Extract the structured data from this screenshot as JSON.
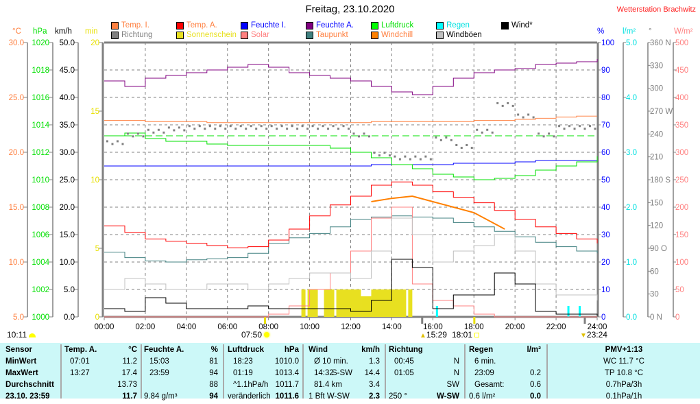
{
  "header": {
    "title": "Freitag, 23.10.2020",
    "station": "Wetterstation Brachwitz"
  },
  "legend": [
    {
      "label": "Temp. I.",
      "color": "#ff8040",
      "text_color": "#ff8040"
    },
    {
      "label": "Richtung",
      "color": "#808080",
      "text_color": "#808080"
    },
    {
      "label": "Temp. A.",
      "color": "#ff0000",
      "text_color": "#ff8040"
    },
    {
      "label": "Sonnenschein",
      "color": "#e8e020",
      "text_color": "#e8e020"
    },
    {
      "label": "Feuchte I.",
      "color": "#0000ff",
      "text_color": "#0000ff"
    },
    {
      "label": "Solar",
      "color": "#ff8080",
      "text_color": "#ff8080"
    },
    {
      "label": "Feuchte A.",
      "color": "#800080",
      "text_color": "#0000ff"
    },
    {
      "label": "Taupunkt",
      "color": "#408080",
      "text_color": "#ff8040"
    },
    {
      "label": "Luftdruck",
      "color": "#00ff00",
      "text_color": "#00e000"
    },
    {
      "label": "Windchill",
      "color": "#ff8000",
      "text_color": "#ff8040"
    },
    {
      "label": "Regen",
      "color": "#00ffff",
      "text_color": "#00e0e0"
    },
    {
      "label": "Windböen",
      "color": "#c0c0c0",
      "text_color": "#000000"
    },
    {
      "label": "Wind*",
      "color": "#000000",
      "text_color": "#000000"
    }
  ],
  "chart_data": {
    "type": "line",
    "title": "Freitag, 23.10.2020",
    "x_ticks": [
      "00:00",
      "02:00",
      "04:00",
      "06:00",
      "08:00",
      "10:00",
      "12:00",
      "14:00",
      "16:00",
      "18:00",
      "20:00",
      "22:00",
      "24:00"
    ],
    "xlim": [
      0,
      24
    ],
    "grid": true,
    "axes": {
      "temp": {
        "unit": "°C",
        "color": "#ff8040",
        "range": [
          5,
          30
        ],
        "ticks": [
          "30.0",
          "25.0",
          "20.0",
          "15.0",
          "10.0",
          "5.0"
        ]
      },
      "pressure": {
        "unit": "hPa",
        "color": "#00e000",
        "range": [
          1000,
          1020
        ],
        "ticks": [
          "1020",
          "1018",
          "1016",
          "1014",
          "1012",
          "1010",
          "1008",
          "1006",
          "1004",
          "1002",
          "1000"
        ]
      },
      "wind": {
        "unit": "km/h",
        "color": "#000000",
        "range": [
          0,
          50
        ],
        "ticks": [
          "50.0",
          "45.0",
          "40.0",
          "35.0",
          "30.0",
          "25.0",
          "20.0",
          "15.0",
          "10.0",
          "5.0",
          "0.0"
        ]
      },
      "sun": {
        "unit": "min",
        "color": "#e8e000",
        "range": [
          0,
          20
        ],
        "ticks": [
          "20",
          "15",
          "10",
          "5",
          "0"
        ]
      },
      "humidity": {
        "unit": "%",
        "color": "#0000ff",
        "range": [
          0,
          100
        ],
        "ticks": [
          "100",
          "90",
          "80",
          "70",
          "60",
          "50",
          "40",
          "30",
          "20",
          "10",
          "0"
        ]
      },
      "rain": {
        "unit": "l/m²",
        "color": "#00e0e0",
        "range": [
          0,
          5
        ],
        "ticks": [
          "5.0",
          "4.0",
          "3.0",
          "2.0",
          "1.0",
          "0.0"
        ]
      },
      "direction": {
        "unit": "°",
        "color": "#808080",
        "range": [
          0,
          360
        ],
        "ticks": [
          "360 N",
          "330",
          "300",
          "270 W",
          "240",
          "210",
          "180 S",
          "150",
          "120",
          "90  O",
          "60",
          "30",
          "0    N"
        ]
      },
      "solar": {
        "unit": "W/m²",
        "color": "#ff8080",
        "range": [
          0,
          500
        ],
        "ticks": [
          "500",
          "450",
          "400",
          "350",
          "300",
          "250",
          "200",
          "150",
          "100",
          "50",
          "0"
        ]
      }
    },
    "pressure_reference": 1013.2,
    "series": [
      {
        "name": "Temp. I.",
        "axis": "temp",
        "color": "#ff8040",
        "values": [
          22.9,
          22.9,
          22.8,
          22.8,
          22.8,
          22.7,
          22.7,
          22.7,
          22.7,
          22.7,
          22.7,
          22.7,
          22.7,
          22.8,
          22.8,
          22.8,
          22.8,
          22.8,
          22.9,
          22.9,
          23.0,
          23.1,
          23.2,
          23.3,
          23.3
        ]
      },
      {
        "name": "Feuchte I.",
        "axis": "humidity",
        "color": "#0000ff",
        "values": [
          55,
          55,
          55,
          55,
          55,
          55,
          55,
          55,
          55,
          55,
          55,
          55,
          55,
          55.5,
          55.5,
          55.5,
          55.5,
          56,
          56,
          56,
          56.5,
          57,
          57,
          57,
          57
        ]
      },
      {
        "name": "Luftdruck",
        "axis": "pressure",
        "color": "#00e000",
        "values": [
          1013.2,
          1013.4,
          1013.0,
          1012.8,
          1012.8,
          1012.6,
          1012.5,
          1012.5,
          1012.5,
          1012.5,
          1012.5,
          1012.3,
          1012.0,
          1011.6,
          1011.1,
          1010.8,
          1010.4,
          1010.2,
          1010.0,
          1010.1,
          1010.3,
          1010.7,
          1011.0,
          1011.3,
          1011.7
        ]
      },
      {
        "name": "Feuchte A.",
        "axis": "humidity",
        "color": "#800080",
        "values": [
          86,
          84,
          87,
          88,
          89,
          90,
          91,
          92,
          91,
          89,
          88,
          87,
          86,
          84,
          82,
          81,
          84,
          87,
          89,
          90,
          90.5,
          92,
          92.5,
          93,
          94
        ]
      },
      {
        "name": "Taupunkt",
        "axis": "temp",
        "color": "#408080",
        "values": [
          10.9,
          10.4,
          10.1,
          10.0,
          10.2,
          10.3,
          10.4,
          10.8,
          11.7,
          12.2,
          12.6,
          13.2,
          13.9,
          14.1,
          14.2,
          14.1,
          14.0,
          13.6,
          13.2,
          12.8,
          12.3,
          11.8,
          11.4,
          11.0,
          10.8
        ]
      },
      {
        "name": "Temp. A.",
        "axis": "temp",
        "color": "#ff0000",
        "values": [
          13.3,
          12.7,
          12.1,
          11.9,
          11.7,
          11.5,
          11.3,
          11.4,
          12.0,
          13.0,
          14.2,
          15.2,
          16.0,
          17.0,
          17.3,
          17.0,
          16.4,
          15.9,
          15.4,
          14.7,
          13.9,
          13.2,
          12.6,
          12.1,
          11.7
        ]
      },
      {
        "name": "Solar",
        "axis": "solar",
        "color": "#ff8080",
        "values": [
          0,
          0,
          0,
          0,
          0,
          0,
          0,
          0,
          5,
          20,
          50,
          80,
          120,
          180,
          200,
          60,
          30,
          20,
          5,
          0,
          0,
          0,
          0,
          0,
          0
        ]
      },
      {
        "name": "Windböen",
        "axis": "wind",
        "color": "#c0c0c0",
        "values": [
          5,
          7,
          6,
          5,
          5,
          6,
          6,
          5,
          6,
          7,
          8,
          8,
          7,
          12,
          18,
          15,
          10,
          12,
          13,
          15,
          12,
          6,
          4,
          4,
          3
        ]
      },
      {
        "name": "Wind*",
        "axis": "wind",
        "color": "#000000",
        "values": [
          1.5,
          1.0,
          3.5,
          2.5,
          1.5,
          1.5,
          1.5,
          2.0,
          1.5,
          1.5,
          1.5,
          1.5,
          1.0,
          3.0,
          10.5,
          9.0,
          1.5,
          4.0,
          4.0,
          8.0,
          6.0,
          1.0,
          0.5,
          0.5,
          0.2
        ]
      }
    ],
    "windchill": {
      "axis": "temp",
      "color": "#ff8000",
      "x": [
        13,
        14,
        15,
        16,
        17,
        18,
        19,
        19.5
      ],
      "values": [
        15.5,
        15.8,
        16.0,
        15.5,
        15.0,
        14.5,
        13.5,
        13.0
      ]
    },
    "direction": {
      "axis": "direction",
      "color": "#808080",
      "values": [
        230,
        240,
        245,
        248,
        250,
        250,
        250,
        250,
        250,
        250,
        250,
        250,
        240,
        215,
        210,
        210,
        235,
        225,
        245,
        280,
        265,
        240,
        250,
        250,
        250
      ]
    },
    "sunshine": {
      "axis": "sun",
      "color": "#e8e020",
      "intervals": [
        [
          9.6,
          9.8,
          2
        ],
        [
          9.9,
          10.4,
          2
        ],
        [
          10.7,
          11.2,
          2
        ],
        [
          11.3,
          12.5,
          2
        ],
        [
          12.5,
          13.0,
          1.5
        ],
        [
          13.0,
          14.7,
          2
        ],
        [
          14.8,
          15.0,
          2
        ]
      ]
    },
    "rain": {
      "axis": "rain",
      "color": "#00ffff",
      "events": [
        [
          16.2,
          0.2
        ],
        [
          22.6,
          0.2
        ],
        [
          23.15,
          0.2
        ]
      ]
    }
  },
  "astro": {
    "sunshine_duration": "10:11",
    "sunrise": "07:50",
    "moonrise": "15:29",
    "sunset": "18:01",
    "moonset": "23:24"
  },
  "table": {
    "sensor": {
      "head": "Sensor",
      "rows": [
        "MinWert",
        "MaxWert",
        "Durchschnitt",
        "23.10. 23:59"
      ]
    },
    "temp": {
      "head": "Temp. A.",
      "unit": "°C",
      "rows": [
        [
          "07:01",
          "11.2"
        ],
        [
          "13:27",
          "17.4"
        ],
        [
          "",
          "13.73"
        ],
        [
          "",
          "11.7"
        ]
      ]
    },
    "hum": {
      "head": "Feuchte A.",
      "unit": "%",
      "rows": [
        [
          "15:03",
          "81"
        ],
        [
          "23:59",
          "94"
        ],
        [
          "",
          "88"
        ],
        [
          "9.84 g/m³",
          "94"
        ]
      ]
    },
    "press": {
      "head": "Luftdruck",
      "unit": "hPa",
      "rows": [
        [
          "18:23",
          "1010.0"
        ],
        [
          "01:19",
          "1013.4"
        ],
        [
          "^1.1hPa/h",
          "1011.7"
        ],
        [
          "veränderlich",
          "1011.6"
        ]
      ]
    },
    "wind": {
      "head": "Wind",
      "unit": "km/h",
      "rows": [
        [
          "Ø 10 min.",
          "",
          "1.3"
        ],
        [
          "14:32",
          "S-SW",
          "14.4"
        ],
        [
          "81.4 km",
          "",
          "3.4"
        ],
        [
          "1 Bft W-SW",
          "",
          "2.3"
        ]
      ]
    },
    "dir": {
      "head": "Richtung",
      "rows": [
        [
          "00:45",
          "N"
        ],
        [
          "01:05",
          "N"
        ],
        [
          "",
          "SW"
        ],
        [
          "250 °",
          "W-SW"
        ]
      ]
    },
    "rain": {
      "head": "Regen",
      "unit": "l/m²",
      "rows": [
        [
          "6 min.",
          ""
        ],
        [
          "23:09",
          "0.2"
        ],
        [
          "Gesamt:",
          "0.6"
        ],
        [
          "0.6 l/m²",
          "0.0"
        ]
      ]
    },
    "pmv": {
      "head": "PMV+1:13",
      "rows": [
        "WC 11.7 °C",
        "TP 10.8 °C",
        "0.7hPa/3h",
        "0.1hPa/1h"
      ]
    }
  }
}
